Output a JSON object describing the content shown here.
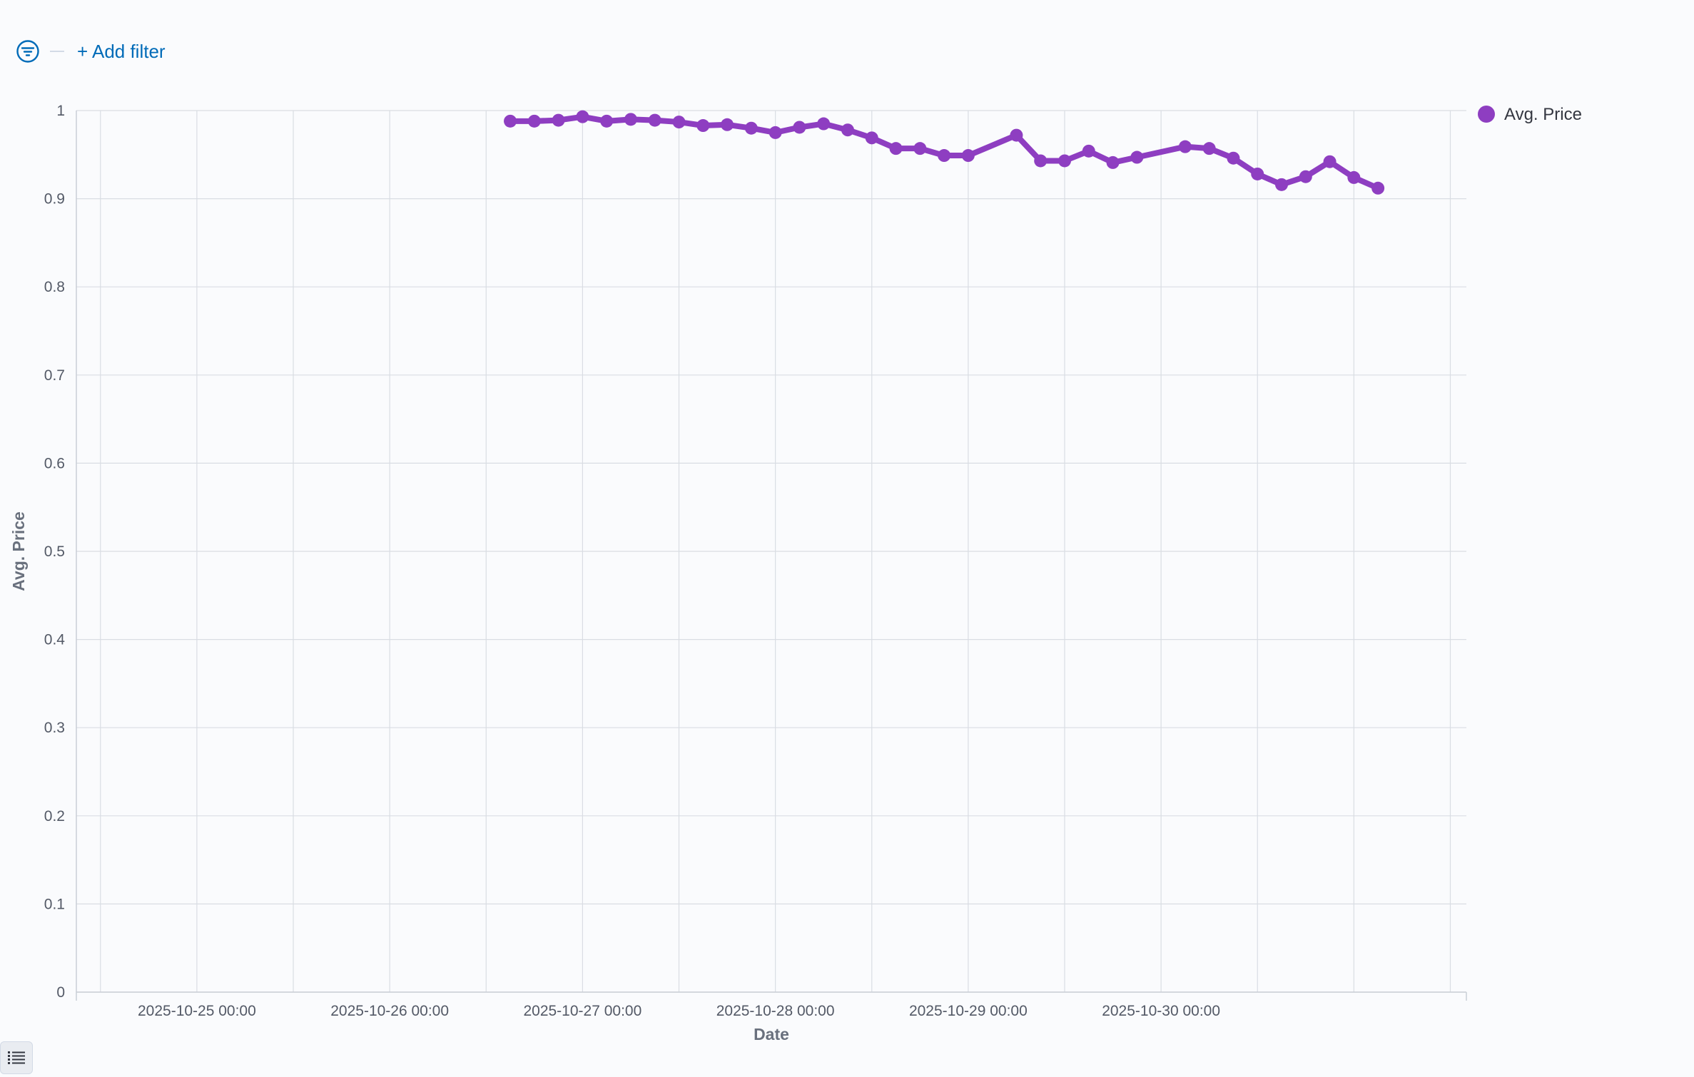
{
  "filter_bar": {
    "add_filter_label": "+ Add filter",
    "icon": "filter-icon"
  },
  "legend_toggle": {
    "icon": "list-icon"
  },
  "colors": {
    "series": "#8e3ec1",
    "grid": "#d9dde3",
    "axis": "#c9ced6",
    "link": "#006bb8"
  },
  "chart_data": {
    "type": "line",
    "xlabel": "Date",
    "ylabel": "Avg. Price",
    "xlim": [
      "2025-10-24 09:00",
      "2025-10-31 14:00"
    ],
    "ylim": [
      0,
      1
    ],
    "grid": true,
    "legend_position": "top-right",
    "x_ticks": [
      "2025-10-25 00:00",
      "2025-10-26 00:00",
      "2025-10-27 00:00",
      "2025-10-28 00:00",
      "2025-10-29 00:00",
      "2025-10-30 00:00"
    ],
    "y_ticks": [
      0,
      0.1,
      0.2,
      0.3,
      0.4,
      0.5,
      0.6,
      0.7,
      0.8,
      0.9,
      1
    ],
    "y_tick_labels": [
      "0",
      "0.1",
      "0.2",
      "0.3",
      "0.4",
      "0.5",
      "0.6",
      "0.7",
      "0.8",
      "0.9",
      "1"
    ],
    "series": [
      {
        "name": "Avg. Price",
        "points": [
          {
            "x": "2025-10-26 15:00",
            "y": 0.988
          },
          {
            "x": "2025-10-26 18:00",
            "y": 0.988
          },
          {
            "x": "2025-10-26 21:00",
            "y": 0.989
          },
          {
            "x": "2025-10-27 00:00",
            "y": 0.993
          },
          {
            "x": "2025-10-27 03:00",
            "y": 0.988
          },
          {
            "x": "2025-10-27 06:00",
            "y": 0.99
          },
          {
            "x": "2025-10-27 09:00",
            "y": 0.989
          },
          {
            "x": "2025-10-27 12:00",
            "y": 0.987
          },
          {
            "x": "2025-10-27 15:00",
            "y": 0.983
          },
          {
            "x": "2025-10-27 18:00",
            "y": 0.984
          },
          {
            "x": "2025-10-27 21:00",
            "y": 0.98
          },
          {
            "x": "2025-10-28 00:00",
            "y": 0.975
          },
          {
            "x": "2025-10-28 03:00",
            "y": 0.981
          },
          {
            "x": "2025-10-28 06:00",
            "y": 0.985
          },
          {
            "x": "2025-10-28 09:00",
            "y": 0.978
          },
          {
            "x": "2025-10-28 12:00",
            "y": 0.969
          },
          {
            "x": "2025-10-28 15:00",
            "y": 0.957
          },
          {
            "x": "2025-10-28 18:00",
            "y": 0.957
          },
          {
            "x": "2025-10-28 21:00",
            "y": 0.949
          },
          {
            "x": "2025-10-29 00:00",
            "y": 0.949
          },
          {
            "x": "2025-10-29 06:00",
            "y": 0.972
          },
          {
            "x": "2025-10-29 09:00",
            "y": 0.943
          },
          {
            "x": "2025-10-29 12:00",
            "y": 0.943
          },
          {
            "x": "2025-10-29 15:00",
            "y": 0.954
          },
          {
            "x": "2025-10-29 18:00",
            "y": 0.941
          },
          {
            "x": "2025-10-29 21:00",
            "y": 0.947
          },
          {
            "x": "2025-10-30 03:00",
            "y": 0.959
          },
          {
            "x": "2025-10-30 06:00",
            "y": 0.957
          },
          {
            "x": "2025-10-30 09:00",
            "y": 0.946
          },
          {
            "x": "2025-10-30 12:00",
            "y": 0.928
          },
          {
            "x": "2025-10-30 15:00",
            "y": 0.916
          },
          {
            "x": "2025-10-30 18:00",
            "y": 0.925
          },
          {
            "x": "2025-10-30 21:00",
            "y": 0.942
          },
          {
            "x": "2025-10-31 00:00",
            "y": 0.924
          },
          {
            "x": "2025-10-31 03:00",
            "y": 0.912
          }
        ]
      }
    ]
  }
}
